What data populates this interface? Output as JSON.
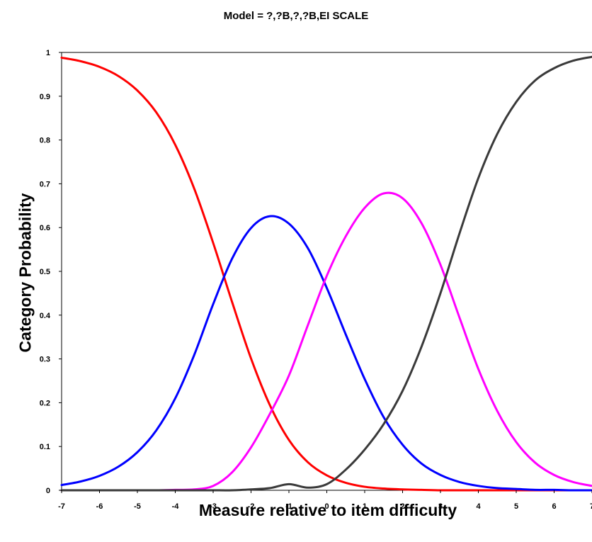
{
  "chart_data": {
    "type": "line",
    "title": "Model = ?,?B,?,?B,EI SCALE",
    "xlabel": "Measure relative to item difficulty",
    "ylabel": "Category Probability",
    "xlim": [
      -7,
      7
    ],
    "ylim": [
      0,
      1
    ],
    "x_ticks": [
      -7,
      -6,
      -5,
      -4,
      -3,
      -2,
      -1,
      0,
      1,
      2,
      3,
      4,
      5,
      6,
      7
    ],
    "y_ticks": [
      0,
      0.1,
      0.2,
      0.3,
      0.4,
      0.5,
      0.6,
      0.7,
      0.8,
      0.9,
      1
    ],
    "grid": false,
    "x": [
      -7,
      -6.5,
      -6,
      -5.5,
      -5,
      -4.5,
      -4,
      -3.5,
      -3,
      -2.5,
      -2,
      -1.5,
      -1,
      -0.5,
      0,
      0.5,
      1,
      1.5,
      2,
      2.5,
      3,
      3.5,
      4,
      4.5,
      5,
      5.5,
      6,
      6.5,
      7
    ],
    "series": [
      {
        "color": "#ff0000",
        "values": [
          0.988,
          0.98,
          0.967,
          0.946,
          0.913,
          0.863,
          0.789,
          0.689,
          0.565,
          0.43,
          0.301,
          0.194,
          0.115,
          0.064,
          0.034,
          0.017,
          0.008,
          0.004,
          0.002,
          0.001,
          0.0,
          0.0,
          0.0,
          0.0,
          0.0,
          0.0,
          0.0,
          0.0,
          0.0
        ]
      },
      {
        "color": "#0000ff",
        "values": [
          0.012,
          0.02,
          0.033,
          0.054,
          0.087,
          0.137,
          0.21,
          0.309,
          0.425,
          0.529,
          0.599,
          0.626,
          0.609,
          0.553,
          0.462,
          0.356,
          0.254,
          0.167,
          0.104,
          0.061,
          0.035,
          0.019,
          0.01,
          0.005,
          0.003,
          0.001,
          0.001,
          0.0,
          0.0
        ]
      },
      {
        "color": "#ff00ff",
        "values": [
          0.0,
          0.0,
          0.0,
          0.0,
          0.0,
          0.0,
          0.001,
          0.002,
          0.01,
          0.041,
          0.098,
          0.175,
          0.262,
          0.377,
          0.49,
          0.58,
          0.645,
          0.678,
          0.667,
          0.61,
          0.515,
          0.395,
          0.277,
          0.181,
          0.11,
          0.063,
          0.035,
          0.019,
          0.01
        ]
      },
      {
        "color": "#3a3a3a",
        "values": [
          0.0,
          0.0,
          0.0,
          0.0,
          0.0,
          0.0,
          0.0,
          0.0,
          0.0,
          0.0,
          0.002,
          0.005,
          0.014,
          0.006,
          0.014,
          0.047,
          0.093,
          0.151,
          0.227,
          0.328,
          0.45,
          0.586,
          0.713,
          0.814,
          0.887,
          0.936,
          0.964,
          0.981,
          0.99
        ]
      }
    ]
  }
}
